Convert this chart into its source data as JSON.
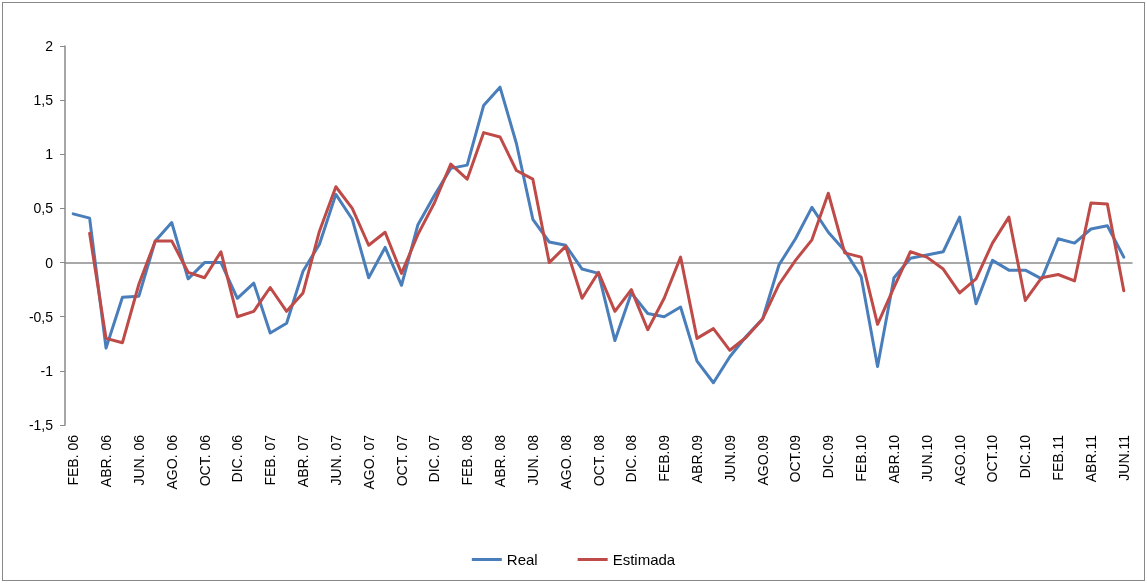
{
  "chart_data": {
    "type": "line",
    "categories": [
      "FEB. 06",
      null,
      "ABR. 06",
      null,
      "JUN. 06",
      null,
      "AGO. 06",
      null,
      "OCT. 06",
      null,
      "DIC. 06",
      null,
      "FEB. 07",
      null,
      "ABR. 07",
      null,
      "JUN. 07",
      null,
      "AGO. 07",
      null,
      "OCT. 07",
      null,
      "DIC. 07",
      null,
      "FEB. 08",
      null,
      "ABR. 08",
      null,
      "JUN. 08",
      null,
      "AGO. 08",
      null,
      "OCT. 08",
      null,
      "DIC. 08",
      null,
      "FEB.09",
      null,
      "ABR.09",
      null,
      "JUN.09",
      null,
      "AGO.09",
      null,
      "OCT.09",
      null,
      "DIC.09",
      null,
      "FEB.10",
      null,
      "ABR.10",
      null,
      "JUN.10",
      null,
      "AGO.10",
      null,
      "OCT.10",
      null,
      "DIC.10",
      null,
      "FEB.11",
      null,
      "ABR.11",
      null,
      "JUN.11"
    ],
    "series": [
      {
        "name": "Real",
        "color": "#4a7ebb",
        "values": [
          0.45,
          0.41,
          -0.79,
          -0.32,
          -0.31,
          0.2,
          0.37,
          -0.15,
          0.0,
          0.0,
          -0.33,
          -0.19,
          -0.65,
          -0.56,
          -0.08,
          0.17,
          0.63,
          0.4,
          -0.14,
          0.14,
          -0.21,
          0.35,
          0.62,
          0.87,
          0.9,
          1.45,
          1.62,
          1.1,
          0.4,
          0.19,
          0.16,
          -0.06,
          -0.1,
          -0.72,
          -0.28,
          -0.47,
          -0.5,
          -0.41,
          -0.91,
          -1.11,
          -0.87,
          -0.68,
          -0.52,
          -0.02,
          0.22,
          0.51,
          0.28,
          0.11,
          -0.13,
          -0.96,
          -0.14,
          0.04,
          0.07,
          0.1,
          0.42,
          -0.38,
          0.02,
          -0.07,
          -0.07,
          -0.15,
          0.22,
          0.18,
          0.31,
          0.34,
          0.05
        ]
      },
      {
        "name": "Estimada",
        "color": "#be4b48",
        "values": [
          null,
          0.27,
          -0.7,
          -0.74,
          -0.2,
          0.2,
          0.2,
          -0.09,
          -0.14,
          0.1,
          -0.5,
          -0.45,
          -0.23,
          -0.45,
          -0.28,
          0.29,
          0.7,
          0.5,
          0.16,
          0.28,
          -0.1,
          0.26,
          0.55,
          0.91,
          0.77,
          1.2,
          1.16,
          0.85,
          0.77,
          0.0,
          0.15,
          -0.33,
          -0.09,
          -0.45,
          -0.25,
          -0.62,
          -0.33,
          0.05,
          -0.7,
          -0.61,
          -0.81,
          -0.69,
          -0.52,
          -0.2,
          0.02,
          0.21,
          0.64,
          0.09,
          0.05,
          -0.57,
          -0.23,
          0.1,
          0.05,
          -0.06,
          -0.28,
          -0.15,
          0.18,
          0.42,
          -0.35,
          -0.14,
          -0.11,
          -0.17,
          0.55,
          0.54,
          -0.26
        ]
      }
    ],
    "ylim": [
      -1.5,
      2
    ],
    "yticks": [
      {
        "value": -1.5,
        "label": "-1,5"
      },
      -1,
      {
        "value": -0.5,
        "label": "-0,5"
      },
      0,
      {
        "value": 0.5,
        "label": "0,5"
      },
      1,
      {
        "value": 1.5,
        "label": "1,5"
      },
      2
    ],
    "legend": "bottom",
    "marker": "none",
    "line_style": "solid"
  }
}
